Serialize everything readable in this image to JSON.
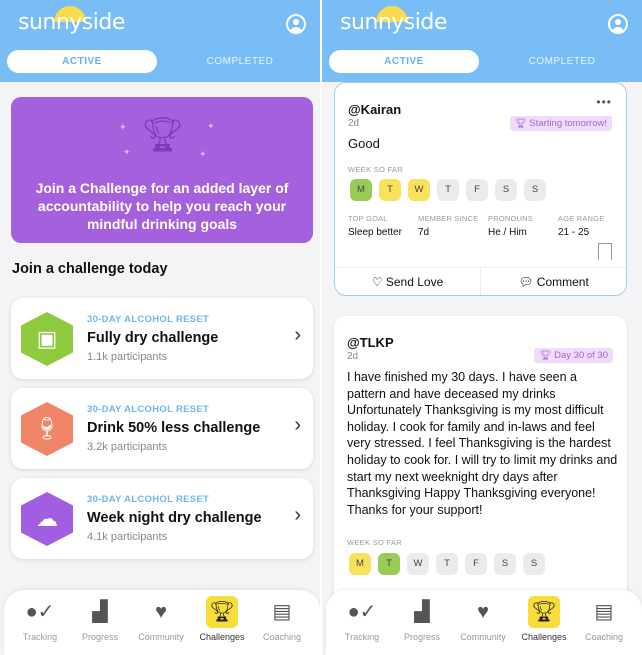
{
  "app": {
    "logo": "sunnyside",
    "tabs": [
      "ACTIVE",
      "COMPLETED"
    ]
  },
  "left": {
    "banner": "Join a Challenge for an added layer of accountability to help you reach your mindful drinking goals",
    "heading": "Join a challenge today",
    "challenges": [
      {
        "kicker": "30-DAY ALCOHOL RESET",
        "title": "Fully dry challenge",
        "participants": "1.1k participants",
        "color": "#8fca3e",
        "icon": "calendar-icon"
      },
      {
        "kicker": "30-DAY ALCOHOL RESET",
        "title": "Drink 50% less challenge",
        "participants": "3.2k participants",
        "color": "#ef8466",
        "icon": "wine-glasses-icon"
      },
      {
        "kicker": "30-DAY ALCOHOL RESET",
        "title": "Week night dry challenge",
        "participants": "4.1k participants",
        "color": "#a25ee0",
        "icon": "night-clouds-icon"
      }
    ]
  },
  "nav": [
    {
      "label": "Tracking",
      "icon": "tracking-icon"
    },
    {
      "label": "Progress",
      "icon": "progress-icon"
    },
    {
      "label": "Community",
      "icon": "community-icon"
    },
    {
      "label": "Challenges",
      "icon": "trophy-icon",
      "selected": true
    },
    {
      "label": "Coaching",
      "icon": "clipboard-icon"
    }
  ],
  "posts": [
    {
      "user": "@Kairan",
      "ago": "2d",
      "badge": "Starting tomorrow!",
      "body": "Good",
      "week_label": "WEEK SO FAR",
      "days": [
        {
          "d": "M",
          "s": "g"
        },
        {
          "d": "T",
          "s": "y"
        },
        {
          "d": "W",
          "s": "y"
        },
        {
          "d": "T",
          "s": ""
        },
        {
          "d": "F",
          "s": ""
        },
        {
          "d": "S",
          "s": ""
        },
        {
          "d": "S",
          "s": ""
        }
      ],
      "stats": [
        {
          "k": "TOP GOAL",
          "v": "Sleep better"
        },
        {
          "k": "MEMBER SINCE",
          "v": "7d"
        },
        {
          "k": "PRONOUNS",
          "v": "He / Him"
        },
        {
          "k": "AGE RANGE",
          "v": "21 - 25"
        }
      ],
      "send_love": "Send Love",
      "comment": "Comment"
    },
    {
      "user": "@TLKP",
      "ago": "2d",
      "badge": "Day 30 of 30",
      "body": "I have finished my 30 days. I have seen a pattern and have deceased my drinks Unfortunately Thanksgiving is my most difficult holiday.  I cook for family and in-laws and feel very stressed. I feel Thanksgiving is the hardest holiday to cook for. I will try to limit my drinks and start my next weeknight dry days after Thanksgiving   Happy Thanksgiving everyone!  Thanks for your support!",
      "week_label": "WEEK SO FAR",
      "days": [
        {
          "d": "M",
          "s": "y"
        },
        {
          "d": "T",
          "s": "g"
        },
        {
          "d": "W",
          "s": ""
        },
        {
          "d": "T",
          "s": ""
        },
        {
          "d": "F",
          "s": ""
        },
        {
          "d": "S",
          "s": ""
        },
        {
          "d": "S",
          "s": ""
        }
      ]
    }
  ]
}
